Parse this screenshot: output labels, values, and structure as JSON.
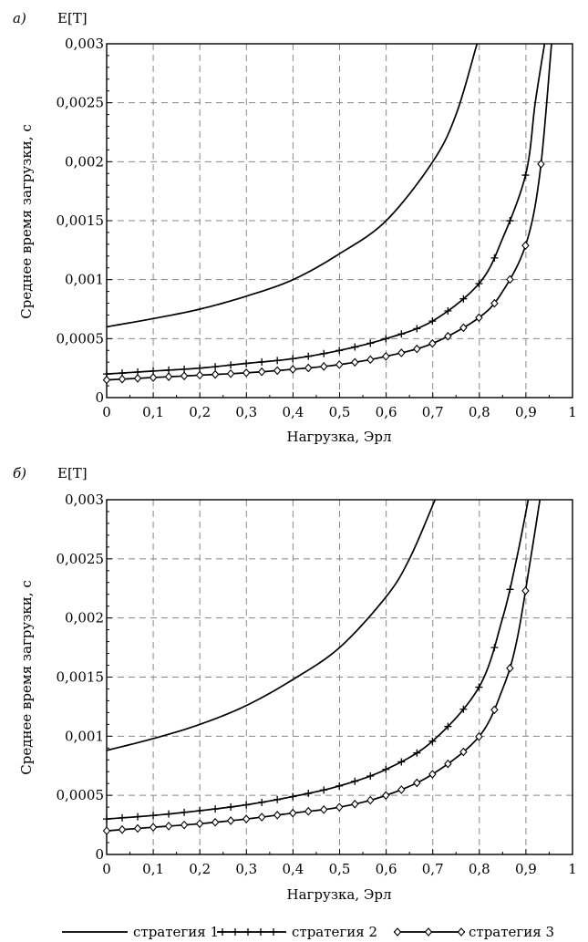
{
  "chart_data": [
    {
      "type": "line",
      "panel_label": "а)",
      "title": "E[T]",
      "xlabel": "Нагрузка, Эрл",
      "ylabel": "Среднее время загрузки, с",
      "xlim": [
        0,
        1
      ],
      "ylim": [
        0,
        0.003
      ],
      "x_ticks": [
        "0",
        "0,1",
        "0,2",
        "0,3",
        "0,4",
        "0,5",
        "0,6",
        "0,7",
        "0,8",
        "0,9",
        "1"
      ],
      "y_ticks": [
        "0",
        "0,0005",
        "0,001",
        "0,0015",
        "0,002",
        "0,0025",
        "0,003"
      ],
      "grid": true,
      "series": [
        {
          "name": "стратегия 1",
          "marker": "none",
          "clip_x": 0.795,
          "x": [
            0,
            0.1,
            0.2,
            0.3,
            0.4,
            0.5,
            0.6,
            0.7,
            0.75,
            0.795
          ],
          "y": [
            0.0006,
            0.00067,
            0.00075,
            0.00086,
            0.001,
            0.00122,
            0.0015,
            0.002,
            0.0024,
            0.003
          ]
        },
        {
          "name": "стратегия 2",
          "marker": "plus",
          "clip_x": 0.94,
          "x": [
            0,
            0.1,
            0.2,
            0.3,
            0.4,
            0.5,
            0.6,
            0.7,
            0.8,
            0.85,
            0.9,
            0.92,
            0.94
          ],
          "y": [
            0.0002,
            0.000225,
            0.00025,
            0.00029,
            0.00033,
            0.0004,
            0.0005,
            0.00065,
            0.00097,
            0.00135,
            0.0019,
            0.0025,
            0.003
          ]
        },
        {
          "name": "стратегия 3",
          "marker": "diamond",
          "clip_x": 0.955,
          "x": [
            0,
            0.1,
            0.2,
            0.3,
            0.4,
            0.5,
            0.6,
            0.7,
            0.8,
            0.85,
            0.9,
            0.93,
            0.955
          ],
          "y": [
            0.00015,
            0.00017,
            0.00019,
            0.00021,
            0.00024,
            0.00028,
            0.00035,
            0.00046,
            0.00068,
            0.0009,
            0.0013,
            0.0019,
            0.003
          ]
        }
      ]
    },
    {
      "type": "line",
      "panel_label": "б)",
      "title": "E[T]",
      "xlabel": "Нагрузка, Эрл",
      "ylabel": "Среднее время загрузки, с",
      "xlim": [
        0,
        1
      ],
      "ylim": [
        0,
        0.003
      ],
      "x_ticks": [
        "0",
        "0,1",
        "0,2",
        "0,3",
        "0,4",
        "0,5",
        "0,6",
        "0,7",
        "0,8",
        "0,9",
        "1"
      ],
      "y_ticks": [
        "0",
        "0,0005",
        "0,001",
        "0,0015",
        "0,002",
        "0,0025",
        "0,003"
      ],
      "grid": true,
      "series": [
        {
          "name": "стратегия 1",
          "marker": "none",
          "clip_x": 0.705,
          "x": [
            0,
            0.1,
            0.2,
            0.3,
            0.4,
            0.5,
            0.6,
            0.65,
            0.705
          ],
          "y": [
            0.00088,
            0.00098,
            0.0011,
            0.00126,
            0.00148,
            0.00175,
            0.00218,
            0.0025,
            0.003
          ]
        },
        {
          "name": "стратегия 2",
          "marker": "plus",
          "clip_x": 0.905,
          "x": [
            0,
            0.1,
            0.2,
            0.3,
            0.4,
            0.5,
            0.6,
            0.7,
            0.8,
            0.85,
            0.88,
            0.905
          ],
          "y": [
            0.0003,
            0.00033,
            0.00037,
            0.00042,
            0.00049,
            0.00058,
            0.00072,
            0.00096,
            0.00142,
            0.002,
            0.0025,
            0.003
          ]
        },
        {
          "name": "стратегия 3",
          "marker": "diamond",
          "clip_x": 0.93,
          "x": [
            0,
            0.1,
            0.2,
            0.3,
            0.4,
            0.5,
            0.6,
            0.7,
            0.8,
            0.85,
            0.88,
            0.91,
            0.93
          ],
          "y": [
            0.0002,
            0.00023,
            0.00026,
            0.0003,
            0.00035,
            0.0004,
            0.0005,
            0.00068,
            0.001,
            0.0014,
            0.0018,
            0.0025,
            0.003
          ]
        }
      ]
    }
  ],
  "legend": {
    "placement": "bottom",
    "entries": [
      {
        "label": "стратегия 1",
        "marker": "none"
      },
      {
        "label": "стратегия 2",
        "marker": "plus"
      },
      {
        "label": "стратегия 3",
        "marker": "diamond"
      }
    ]
  }
}
